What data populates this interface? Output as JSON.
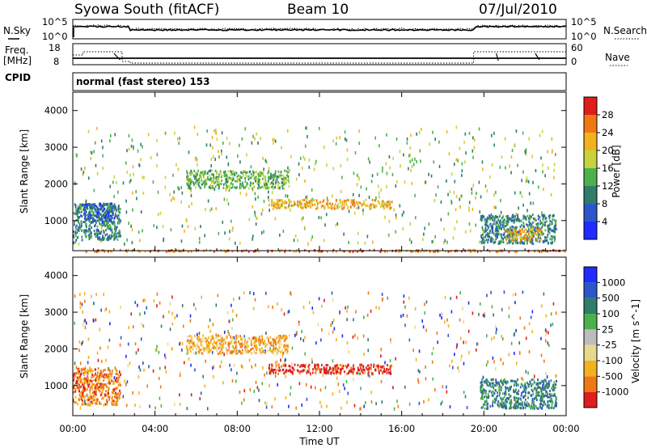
{
  "header": {
    "station": "Syowa South (fitACF)",
    "beam": "Beam 10",
    "date": "07/Jul/2010"
  },
  "noise_panel": {
    "left_label": "N.Sky",
    "right_label": "N.Search",
    "left_ticks": [
      "10^5",
      "10^0"
    ],
    "right_ticks": [
      "10^5",
      "10^0"
    ]
  },
  "freq_panel": {
    "left_label_line1": "Freq.",
    "left_label_line2": "[MHz]",
    "left_ticks": [
      "18",
      "8"
    ],
    "right_label": "Nave",
    "right_ticks": [
      "60",
      "0"
    ],
    "cpid_label": "CPID",
    "cpid_text": "normal (fast stereo) 153"
  },
  "time_axis": {
    "label": "Time UT",
    "ticks": [
      "00:00",
      "04:00",
      "08:00",
      "12:00",
      "16:00",
      "20:00",
      "00:00"
    ],
    "range_hours": [
      0,
      24
    ]
  },
  "chart_data": [
    {
      "type": "heatmap",
      "name": "power",
      "ylabel": "Slant Range [km]",
      "ylim": [
        180,
        4500
      ],
      "yticks": [
        1000,
        2000,
        3000,
        4000
      ],
      "colorbar": {
        "label": "Power [dB]",
        "ticks": [
          4,
          8,
          12,
          16,
          20,
          24,
          28
        ],
        "range": [
          0,
          30
        ],
        "colors": [
          "#1f2bff",
          "#2b57c8",
          "#2f7d6a",
          "#4bb24b",
          "#c8d23c",
          "#f2b21e",
          "#f07814",
          "#e01c1c"
        ]
      },
      "patches": [
        {
          "t0": 0.0,
          "t1": 2.3,
          "r0": 500,
          "r1": 1500,
          "level": 2
        },
        {
          "t0": 0.5,
          "t1": 2.0,
          "r0": 1000,
          "r1": 1500,
          "level": 1
        },
        {
          "t0": 0.0,
          "t1": 24.0,
          "r0": 180,
          "r1": 230,
          "level": 6
        },
        {
          "t0": 5.5,
          "t1": 10.5,
          "r0": 1900,
          "r1": 2400,
          "level": 3
        },
        {
          "t0": 9.5,
          "t1": 15.5,
          "r0": 1350,
          "r1": 1600,
          "level": 5
        },
        {
          "t0": 19.8,
          "t1": 23.5,
          "r0": 400,
          "r1": 1200,
          "level": 2
        },
        {
          "t0": 21.0,
          "t1": 22.8,
          "r0": 500,
          "r1": 800,
          "level": 5
        }
      ]
    },
    {
      "type": "heatmap",
      "name": "velocity",
      "ylabel": "Slant Range [km]",
      "ylim": [
        180,
        4500
      ],
      "yticks": [
        1000,
        2000,
        3000,
        4000
      ],
      "colorbar": {
        "label": "Velocity [m s^-1]",
        "ticks": [
          -1000,
          -500,
          -100,
          -25,
          25,
          100,
          500,
          1000
        ],
        "tick_labels": [
          "-1000",
          "-500",
          "-100",
          "-25",
          "25",
          "100",
          "500",
          "1000"
        ],
        "colors": [
          "#e01c1c",
          "#f07814",
          "#f2b21e",
          "#e8d88a",
          "#bdbdbd",
          "#4bb24b",
          "#2f7d6a",
          "#2b57c8",
          "#1f2bff"
        ]
      },
      "patches": [
        {
          "t0": 0.0,
          "t1": 2.3,
          "r0": 500,
          "r1": 1500,
          "level": 1
        },
        {
          "t0": 5.5,
          "t1": 10.5,
          "r0": 1900,
          "r1": 2400,
          "level": 2
        },
        {
          "t0": 9.5,
          "t1": 15.5,
          "r0": 1350,
          "r1": 1600,
          "level": 0
        },
        {
          "t0": 19.8,
          "t1": 23.5,
          "r0": 400,
          "r1": 1200,
          "level": 6
        }
      ]
    }
  ]
}
